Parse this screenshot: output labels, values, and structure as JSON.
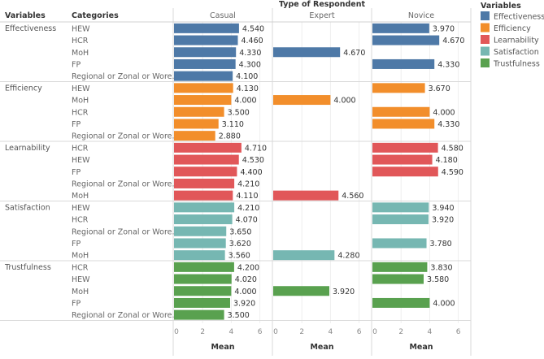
{
  "chart_data": {
    "type": "bar",
    "orientation": "horizontal",
    "title": "Type of Respondent",
    "xlabel": "Mean",
    "xlim": [
      0,
      6.5
    ],
    "xticks": [
      "0",
      "2",
      "4",
      "6"
    ],
    "row_headers": {
      "variables": "Variables",
      "categories": "Categories"
    },
    "panels": [
      "Casual",
      "Expert",
      "Novice"
    ],
    "legend": {
      "title": "Variables",
      "position": "top-right",
      "items": [
        {
          "label": "Effectiveness",
          "color": "#4e79a7"
        },
        {
          "label": "Efficiency",
          "color": "#f28e2b"
        },
        {
          "label": "Learnability",
          "color": "#e15759"
        },
        {
          "label": "Satisfaction",
          "color": "#76b7b2"
        },
        {
          "label": "Trustfulness",
          "color": "#59a14f"
        }
      ]
    },
    "groups": [
      {
        "variable": "Effectiveness",
        "rows": [
          {
            "category": "HEW",
            "values": [
              4.54,
              null,
              3.97
            ],
            "labels": [
              "4.540",
              "",
              "3.970"
            ]
          },
          {
            "category": "HCR",
            "values": [
              4.46,
              null,
              4.67
            ],
            "labels": [
              "4.460",
              "",
              "4.670"
            ]
          },
          {
            "category": "MoH",
            "values": [
              4.33,
              4.67,
              null
            ],
            "labels": [
              "4.330",
              "4.670",
              ""
            ]
          },
          {
            "category": "FP",
            "values": [
              4.3,
              null,
              4.33
            ],
            "labels": [
              "4.300",
              "",
              "4.330"
            ]
          },
          {
            "category": "Regional or Zonal or Wore..",
            "values": [
              4.1,
              null,
              null
            ],
            "labels": [
              "4.100",
              "",
              ""
            ]
          }
        ]
      },
      {
        "variable": "Efficiency",
        "rows": [
          {
            "category": "HEW",
            "values": [
              4.13,
              null,
              3.67
            ],
            "labels": [
              "4.130",
              "",
              "3.670"
            ]
          },
          {
            "category": "MoH",
            "values": [
              4.0,
              4.0,
              null
            ],
            "labels": [
              "4.000",
              "4.000",
              ""
            ]
          },
          {
            "category": "HCR",
            "values": [
              3.5,
              null,
              4.0
            ],
            "labels": [
              "3.500",
              "",
              "4.000"
            ]
          },
          {
            "category": "FP",
            "values": [
              3.11,
              null,
              4.33
            ],
            "labels": [
              "3.110",
              "",
              "4.330"
            ]
          },
          {
            "category": "Regional or Zonal or Wore..",
            "values": [
              2.88,
              null,
              null
            ],
            "labels": [
              "2.880",
              "",
              ""
            ]
          }
        ]
      },
      {
        "variable": "Learnability",
        "rows": [
          {
            "category": "HCR",
            "values": [
              4.71,
              null,
              4.58
            ],
            "labels": [
              "4.710",
              "",
              "4.580"
            ]
          },
          {
            "category": "HEW",
            "values": [
              4.53,
              null,
              4.18
            ],
            "labels": [
              "4.530",
              "",
              "4.180"
            ]
          },
          {
            "category": "FP",
            "values": [
              4.4,
              null,
              4.59
            ],
            "labels": [
              "4.400",
              "",
              "4.590"
            ]
          },
          {
            "category": "Regional or Zonal or Wore..",
            "values": [
              4.21,
              null,
              null
            ],
            "labels": [
              "4.210",
              "",
              ""
            ]
          },
          {
            "category": "MoH",
            "values": [
              4.11,
              4.56,
              null
            ],
            "labels": [
              "4.110",
              "4.560",
              ""
            ]
          }
        ]
      },
      {
        "variable": "Satisfaction",
        "rows": [
          {
            "category": "HEW",
            "values": [
              4.21,
              null,
              3.94
            ],
            "labels": [
              "4.210",
              "",
              "3.940"
            ]
          },
          {
            "category": "HCR",
            "values": [
              4.07,
              null,
              3.92
            ],
            "labels": [
              "4.070",
              "",
              "3.920"
            ]
          },
          {
            "category": "Regional or Zonal or Wore..",
            "values": [
              3.65,
              null,
              null
            ],
            "labels": [
              "3.650",
              "",
              ""
            ]
          },
          {
            "category": "FP",
            "values": [
              3.62,
              null,
              3.78
            ],
            "labels": [
              "3.620",
              "",
              "3.780"
            ]
          },
          {
            "category": "MoH",
            "values": [
              3.56,
              4.28,
              null
            ],
            "labels": [
              "3.560",
              "4.280",
              ""
            ]
          }
        ]
      },
      {
        "variable": "Trustfulness",
        "rows": [
          {
            "category": "HCR",
            "values": [
              4.2,
              null,
              3.83
            ],
            "labels": [
              "4.200",
              "",
              "3.830"
            ]
          },
          {
            "category": "HEW",
            "values": [
              4.02,
              null,
              3.58
            ],
            "labels": [
              "4.020",
              "",
              "3.580"
            ]
          },
          {
            "category": "MoH",
            "values": [
              4.0,
              3.92,
              null
            ],
            "labels": [
              "4.000",
              "3.920",
              ""
            ]
          },
          {
            "category": "FP",
            "values": [
              3.92,
              null,
              4.0
            ],
            "labels": [
              "3.920",
              "",
              "4.000"
            ]
          },
          {
            "category": "Regional or Zonal or Wore..",
            "values": [
              3.5,
              null,
              null
            ],
            "labels": [
              "3.500",
              "",
              ""
            ]
          }
        ]
      }
    ]
  }
}
